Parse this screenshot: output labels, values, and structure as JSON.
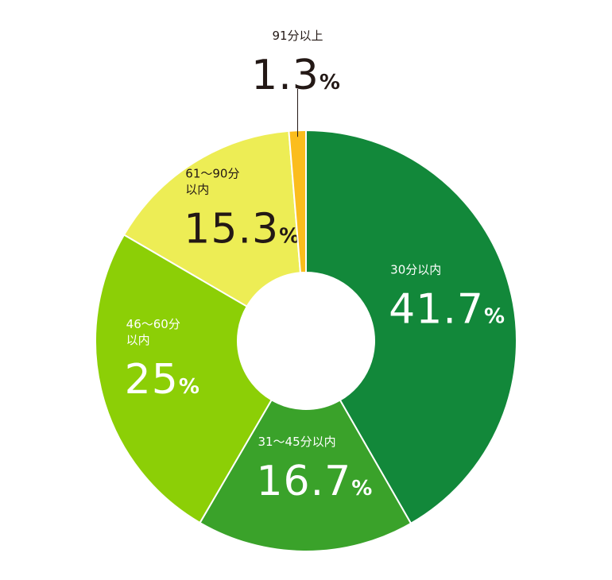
{
  "chart_data": {
    "type": "pie",
    "categories": [
      "30分以内",
      "31～45分以内",
      "46～60分\n以内",
      "61～90分\n以内",
      "91分以上"
    ],
    "values": [
      41.7,
      16.7,
      25,
      15.3,
      1.3
    ],
    "value_labels": [
      "41.7%",
      "16.7%",
      "25%",
      "15.3%",
      "1.3%"
    ],
    "colors": [
      "#12883a",
      "#3aa22a",
      "#8ccf06",
      "#eded55",
      "#fbbd1d"
    ]
  }
}
